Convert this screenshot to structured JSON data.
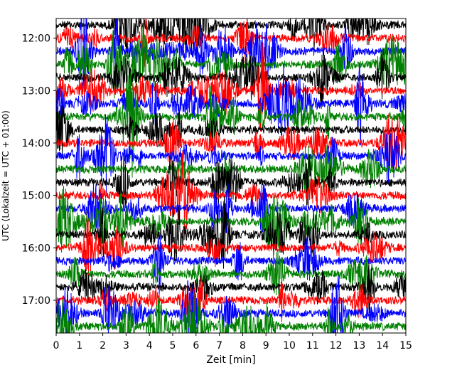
{
  "chart_data": {
    "type": "line",
    "title": "",
    "xlabel": "Zeit  [min]",
    "ylabel": "UTC (Lokalzeit = UTC + 01:00)",
    "xlim": [
      0,
      15
    ],
    "x_ticks": [
      "0",
      "1",
      "2",
      "3",
      "4",
      "5",
      "6",
      "7",
      "8",
      "9",
      "10",
      "11",
      "12",
      "13",
      "14",
      "15"
    ],
    "y_ticks": [
      "12:00",
      "13:00",
      "14:00",
      "15:00",
      "16:00",
      "17:00"
    ],
    "trace_minutes_per_line": 15,
    "start_time": "11:45",
    "end_time": "17:45",
    "trace_colors": [
      "#000000",
      "#ff0000",
      "#0000ff",
      "#008000"
    ],
    "trace_count": 24,
    "grid": false,
    "legend": "none"
  }
}
